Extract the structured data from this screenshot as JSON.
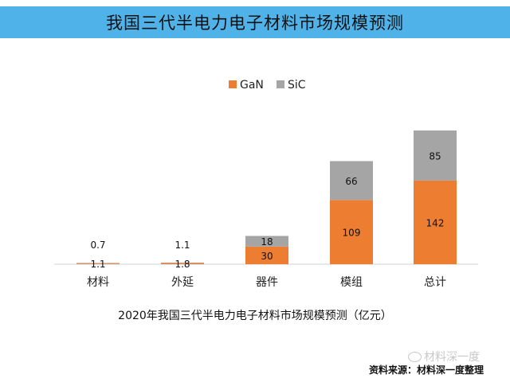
{
  "header": {
    "title": "我国三代半电力电子材料市场规模预测"
  },
  "chart_data": {
    "type": "bar",
    "stacked": true,
    "categories": [
      "材料",
      "外延",
      "器件",
      "模组",
      "总计"
    ],
    "series": [
      {
        "name": "GaN",
        "color": "#ed7d31",
        "values": [
          1.1,
          1.8,
          30,
          109,
          142
        ]
      },
      {
        "name": "SiC",
        "color": "#a5a5a5",
        "values": [
          0.7,
          1.1,
          18,
          66,
          85
        ]
      }
    ],
    "data_label_color_inner": "#111111",
    "title": "2020年我国三代半电力电子材料市场规模预测（亿元）",
    "legend_position": "top-center",
    "ylim": [
      0,
      235
    ]
  },
  "watermark": {
    "text": "材料深一度"
  },
  "footer": {
    "source": "资料来源：材料深一度整理"
  }
}
